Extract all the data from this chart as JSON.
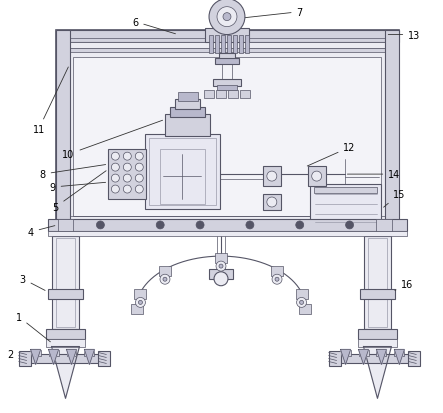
{
  "bg_color": "#ffffff",
  "line_color": "#555566",
  "light_line": "#999aaa",
  "fill_light": "#ebebf2",
  "fill_mid": "#d2d2de",
  "fill_dark": "#b8b8cc",
  "figsize": [
    4.43,
    4.14
  ],
  "dpi": 100
}
